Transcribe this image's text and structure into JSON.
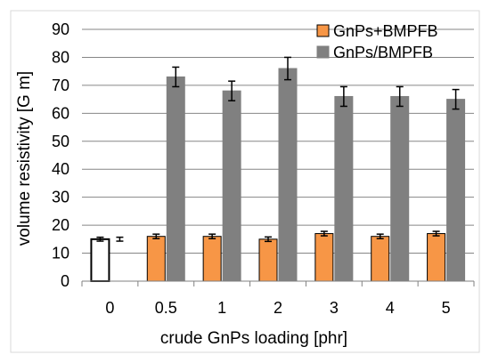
{
  "chart_data": {
    "type": "bar",
    "title": "",
    "xlabel": "crude GnPs loading [phr]",
    "ylabel": "volume resistivity [G m]",
    "ylim": [
      0,
      90
    ],
    "y_ticks": [
      0,
      10,
      20,
      30,
      40,
      50,
      60,
      70,
      80,
      90
    ],
    "categories": [
      "0",
      "0.5",
      "1",
      "2",
      "3",
      "4",
      "5"
    ],
    "grid": "horizontal",
    "legend_position": "top-right",
    "reference_bar": {
      "category": "0",
      "value": 15,
      "error": 0.7,
      "style": "hollow-black-outline"
    },
    "series": [
      {
        "name": "GnPs+BMPFB",
        "color": "#f79646",
        "stroke": "#000000",
        "values": [
          15,
          16,
          16,
          15,
          17,
          16,
          17
        ],
        "errors": [
          0.6,
          0.8,
          0.8,
          0.8,
          0.8,
          0.8,
          0.8
        ],
        "bar_drawn": [
          false,
          true,
          true,
          true,
          true,
          true,
          true
        ]
      },
      {
        "name": "GnPs/BMPFB",
        "color": "#808080",
        "stroke": "#808080",
        "values": [
          15,
          73,
          68,
          76,
          66,
          66,
          65
        ],
        "errors": [
          0.7,
          3.5,
          3.5,
          4.0,
          3.5,
          3.5,
          3.5
        ],
        "bar_drawn": [
          false,
          true,
          true,
          true,
          true,
          true,
          true
        ]
      }
    ]
  }
}
